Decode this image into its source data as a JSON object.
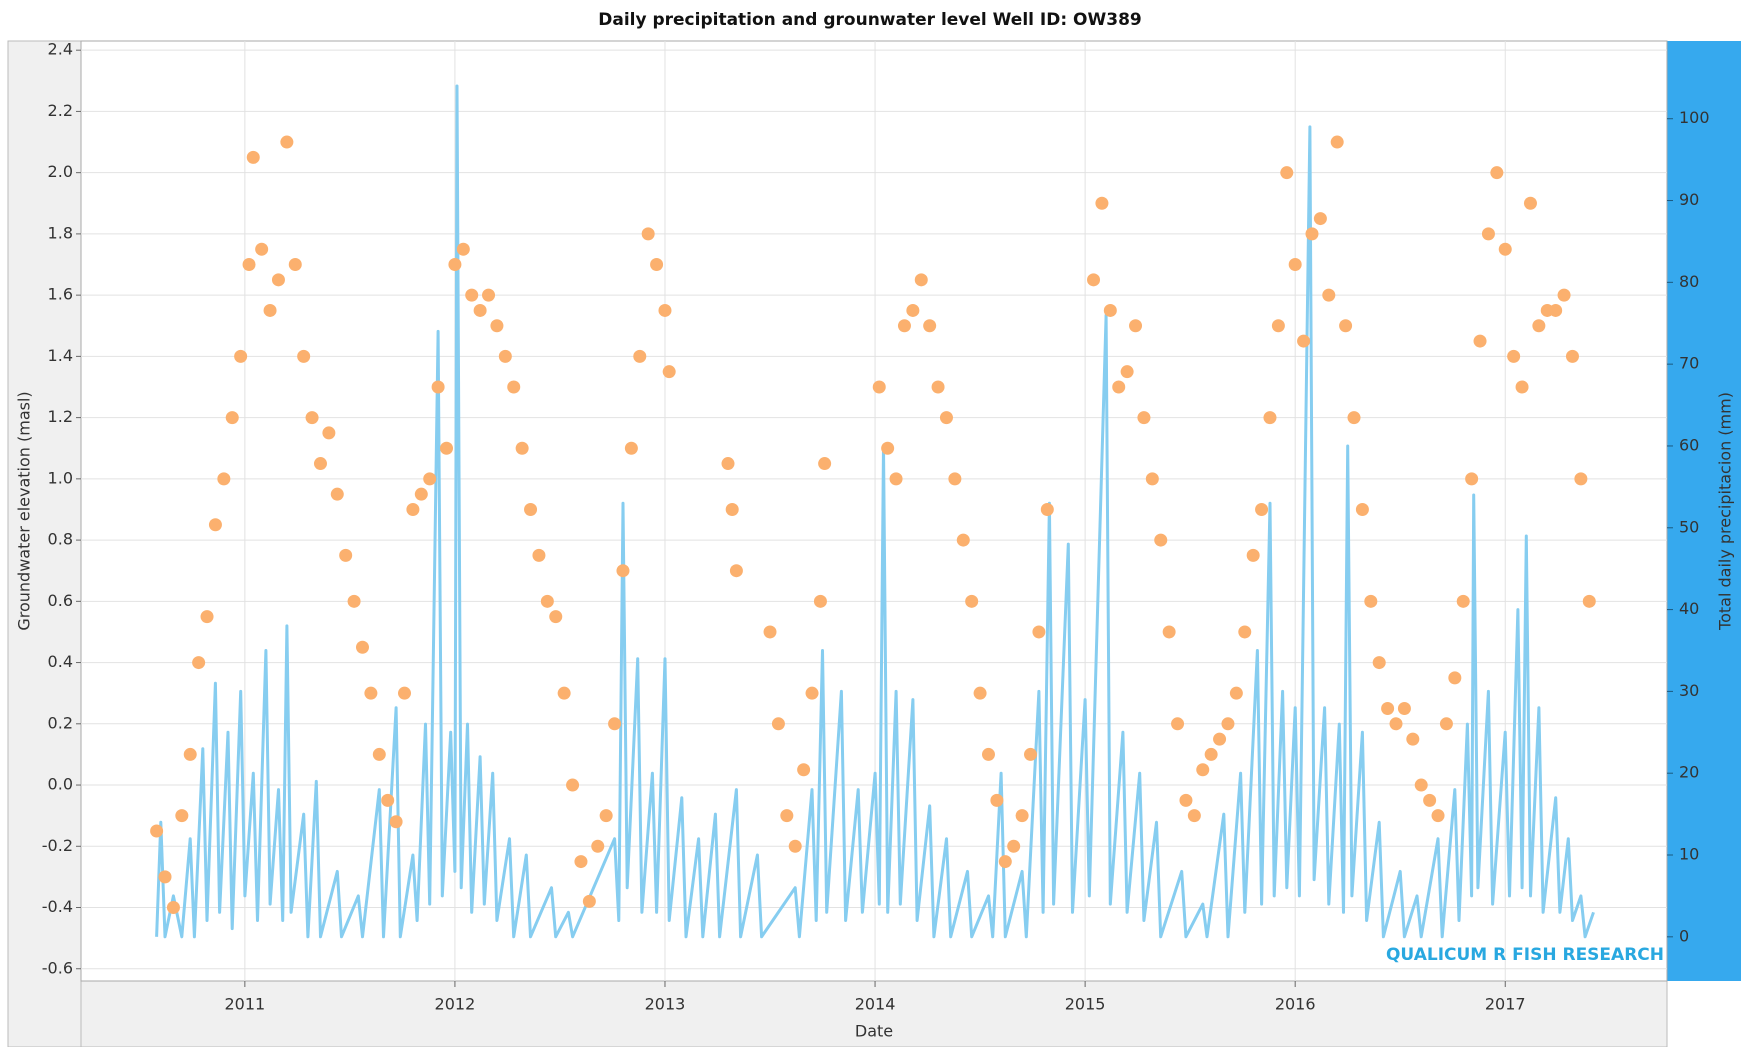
{
  "chart_data": {
    "type": "mixed",
    "title": "Daily precipitation and grounwater level Well ID: OW389",
    "xlabel": "Date",
    "ylabel": "Groundwater elevation (masl)",
    "y2label": "Total daily precipitacion (mm)",
    "watermark": "QUALICUM R FISH RESEARCH",
    "xlim": [
      2010.22,
      2017.77
    ],
    "xticks": [
      2011,
      2012,
      2013,
      2014,
      2015,
      2016,
      2017
    ],
    "ylim": [
      -0.64,
      2.43
    ],
    "yticks": [
      -0.6,
      -0.4,
      -0.2,
      {
        "value": 0,
        "label": "0.0"
      },
      0.2,
      0.4,
      0.6,
      0.8,
      {
        "value": 1,
        "label": "1.0"
      },
      1.2,
      1.4,
      1.6,
      1.8,
      {
        "value": 2,
        "label": "2.0"
      },
      2.2,
      2.4
    ],
    "y2lim": [
      -5.4,
      109.5
    ],
    "y2ticks": [
      0,
      10,
      20,
      30,
      40,
      50,
      60,
      70,
      80,
      90,
      100
    ],
    "grid": true,
    "series": [
      {
        "type": "scatter",
        "color": "#fbb06e",
        "x": [
          2010.58,
          2010.62,
          2010.66,
          2010.7,
          2010.74,
          2010.78,
          2010.82,
          2010.86,
          2010.9,
          2010.94,
          2010.98,
          2011.02,
          2011.04,
          2011.08,
          2011.12,
          2011.16,
          2011.2,
          2011.24,
          2011.28,
          2011.32,
          2011.36,
          2011.4,
          2011.44,
          2011.48,
          2011.52,
          2011.56,
          2011.6,
          2011.64,
          2011.68,
          2011.72,
          2011.76,
          2011.8,
          2011.84,
          2011.88,
          2011.92,
          2011.96,
          2012.0,
          2012.04,
          2012.08,
          2012.12,
          2012.16,
          2012.2,
          2012.24,
          2012.28,
          2012.32,
          2012.36,
          2012.4,
          2012.44,
          2012.48,
          2012.52,
          2012.56,
          2012.6,
          2012.64,
          2012.68,
          2012.72,
          2012.76,
          2012.8,
          2012.84,
          2012.88,
          2012.92,
          2012.96,
          2013.0,
          2013.02,
          2013.3,
          2013.32,
          2013.34,
          2013.5,
          2013.54,
          2013.58,
          2013.62,
          2013.66,
          2013.7,
          2013.74,
          2013.76,
          2014.02,
          2014.06,
          2014.1,
          2014.14,
          2014.18,
          2014.22,
          2014.26,
          2014.3,
          2014.34,
          2014.38,
          2014.42,
          2014.46,
          2014.5,
          2014.54,
          2014.58,
          2014.62,
          2014.66,
          2014.7,
          2014.74,
          2014.78,
          2014.82,
          2015.04,
          2015.08,
          2015.12,
          2015.16,
          2015.2,
          2015.24,
          2015.28,
          2015.32,
          2015.36,
          2015.4,
          2015.44,
          2015.48,
          2015.52,
          2015.56,
          2015.6,
          2015.64,
          2015.68,
          2015.72,
          2015.76,
          2015.8,
          2015.84,
          2015.88,
          2015.92,
          2015.96,
          2016.0,
          2016.04,
          2016.08,
          2016.12,
          2016.16,
          2016.2,
          2016.24,
          2016.28,
          2016.32,
          2016.36,
          2016.4,
          2016.44,
          2016.48,
          2016.52,
          2016.56,
          2016.6,
          2016.64,
          2016.68,
          2016.72,
          2016.76,
          2016.8,
          2016.84,
          2016.88,
          2016.92,
          2016.96,
          2017.0,
          2017.04,
          2017.08,
          2017.12,
          2017.16,
          2017.2,
          2017.24,
          2017.28,
          2017.32,
          2017.36,
          2017.4
        ],
        "values": [
          -0.15,
          -0.3,
          -0.4,
          -0.1,
          0.1,
          0.4,
          0.55,
          0.85,
          1.0,
          1.2,
          1.4,
          1.7,
          2.05,
          1.75,
          1.55,
          1.65,
          2.1,
          1.7,
          1.4,
          1.2,
          1.05,
          1.15,
          0.95,
          0.75,
          0.6,
          0.45,
          0.3,
          0.1,
          -0.05,
          -0.12,
          0.3,
          0.9,
          0.95,
          1.0,
          1.3,
          1.1,
          1.7,
          1.75,
          1.6,
          1.55,
          1.6,
          1.5,
          1.4,
          1.3,
          1.1,
          0.9,
          0.75,
          0.6,
          0.55,
          0.3,
          0.0,
          -0.25,
          -0.38,
          -0.2,
          -0.1,
          0.2,
          0.7,
          1.1,
          1.4,
          1.8,
          1.7,
          1.55,
          1.35,
          1.05,
          0.9,
          0.7,
          0.5,
          0.2,
          -0.1,
          -0.2,
          0.05,
          0.3,
          0.6,
          1.05,
          1.3,
          1.1,
          1.0,
          1.5,
          1.55,
          1.65,
          1.5,
          1.3,
          1.2,
          1.0,
          0.8,
          0.6,
          0.3,
          0.1,
          -0.05,
          -0.25,
          -0.2,
          -0.1,
          0.1,
          0.5,
          0.9,
          1.65,
          1.9,
          1.55,
          1.3,
          1.35,
          1.5,
          1.2,
          1.0,
          0.8,
          0.5,
          0.2,
          -0.05,
          -0.1,
          0.05,
          0.1,
          0.15,
          0.2,
          0.3,
          0.5,
          0.75,
          0.9,
          1.2,
          1.5,
          2.0,
          1.7,
          1.45,
          1.8,
          1.85,
          1.6,
          2.1,
          1.5,
          1.2,
          0.9,
          0.6,
          0.4,
          0.25,
          0.2,
          0.25,
          0.15,
          0.0,
          -0.05,
          -0.1,
          0.2,
          0.35,
          0.6,
          1.0,
          1.45,
          1.8,
          2.0,
          1.75,
          1.4,
          1.3,
          1.9,
          1.5,
          1.55,
          1.55,
          1.6,
          1.4,
          1.0,
          0.6
        ]
      },
      {
        "type": "line",
        "axis": "y2",
        "color": "#86cdf0",
        "x": [
          2010.58,
          2010.6,
          2010.62,
          2010.66,
          2010.7,
          2010.74,
          2010.76,
          2010.8,
          2010.82,
          2010.86,
          2010.88,
          2010.92,
          2010.94,
          2010.98,
          2011.0,
          2011.04,
          2011.06,
          2011.1,
          2011.12,
          2011.16,
          2011.18,
          2011.2,
          2011.22,
          2011.28,
          2011.3,
          2011.34,
          2011.36,
          2011.44,
          2011.46,
          2011.54,
          2011.56,
          2011.64,
          2011.66,
          2011.72,
          2011.74,
          2011.8,
          2011.82,
          2011.86,
          2011.88,
          2011.92,
          2011.94,
          2011.98,
          2012.0,
          2012.01,
          2012.03,
          2012.06,
          2012.08,
          2012.12,
          2012.14,
          2012.18,
          2012.2,
          2012.26,
          2012.28,
          2012.34,
          2012.36,
          2012.46,
          2012.48,
          2012.54,
          2012.56,
          2012.76,
          2012.78,
          2012.8,
          2012.82,
          2012.87,
          2012.89,
          2012.94,
          2012.96,
          2013.0,
          2013.02,
          2013.08,
          2013.1,
          2013.16,
          2013.18,
          2013.24,
          2013.26,
          2013.34,
          2013.36,
          2013.44,
          2013.46,
          2013.62,
          2013.64,
          2013.7,
          2013.72,
          2013.75,
          2013.77,
          2013.84,
          2013.86,
          2013.92,
          2013.94,
          2014.0,
          2014.02,
          2014.04,
          2014.06,
          2014.1,
          2014.12,
          2014.18,
          2014.2,
          2014.26,
          2014.28,
          2014.34,
          2014.36,
          2014.44,
          2014.46,
          2014.54,
          2014.56,
          2014.6,
          2014.62,
          2014.7,
          2014.72,
          2014.78,
          2014.8,
          2014.83,
          2014.85,
          2014.92,
          2014.94,
          2015.0,
          2015.02,
          2015.1,
          2015.12,
          2015.18,
          2015.2,
          2015.26,
          2015.28,
          2015.34,
          2015.36,
          2015.46,
          2015.48,
          2015.56,
          2015.58,
          2015.66,
          2015.68,
          2015.74,
          2015.76,
          2015.82,
          2015.84,
          2015.88,
          2015.9,
          2015.94,
          2015.96,
          2016.0,
          2016.02,
          2016.07,
          2016.09,
          2016.14,
          2016.16,
          2016.21,
          2016.23,
          2016.25,
          2016.27,
          2016.32,
          2016.34,
          2016.4,
          2016.42,
          2016.5,
          2016.52,
          2016.58,
          2016.6,
          2016.68,
          2016.7,
          2016.76,
          2016.78,
          2016.82,
          2016.84,
          2016.85,
          2016.87,
          2016.92,
          2016.94,
          2017.0,
          2017.02,
          2017.06,
          2017.08,
          2017.1,
          2017.12,
          2017.16,
          2017.18,
          2017.24,
          2017.26,
          2017.3,
          2017.32,
          2017.36,
          2017.38,
          2017.42
        ],
        "values": [
          0,
          14,
          0,
          5,
          0,
          12,
          0,
          23,
          2,
          31,
          3,
          25,
          1,
          30,
          5,
          20,
          2,
          35,
          4,
          18,
          2,
          38,
          3,
          15,
          0,
          19,
          0,
          8,
          0,
          5,
          0,
          18,
          0,
          28,
          0,
          10,
          2,
          26,
          4,
          74,
          5,
          25,
          8,
          104,
          6,
          26,
          3,
          22,
          4,
          20,
          2,
          12,
          0,
          10,
          0,
          6,
          0,
          3,
          0,
          12,
          2,
          53,
          6,
          34,
          3,
          20,
          3,
          34,
          2,
          17,
          0,
          12,
          0,
          15,
          0,
          18,
          0,
          10,
          0,
          6,
          0,
          18,
          2,
          35,
          3,
          30,
          2,
          18,
          3,
          20,
          4,
          60,
          3,
          30,
          4,
          29,
          2,
          16,
          0,
          12,
          0,
          8,
          0,
          5,
          0,
          20,
          0,
          8,
          0,
          30,
          3,
          53,
          4,
          48,
          3,
          29,
          5,
          76,
          4,
          25,
          3,
          20,
          2,
          14,
          0,
          8,
          0,
          4,
          0,
          15,
          0,
          20,
          3,
          35,
          4,
          53,
          5,
          30,
          6,
          28,
          5,
          99,
          7,
          28,
          4,
          26,
          3,
          60,
          5,
          25,
          2,
          14,
          0,
          8,
          0,
          5,
          0,
          12,
          0,
          18,
          2,
          26,
          5,
          54,
          6,
          30,
          4,
          25,
          5,
          40,
          6,
          49,
          5,
          28,
          3,
          17,
          3,
          12,
          2,
          5,
          0,
          3
        ]
      }
    ]
  }
}
